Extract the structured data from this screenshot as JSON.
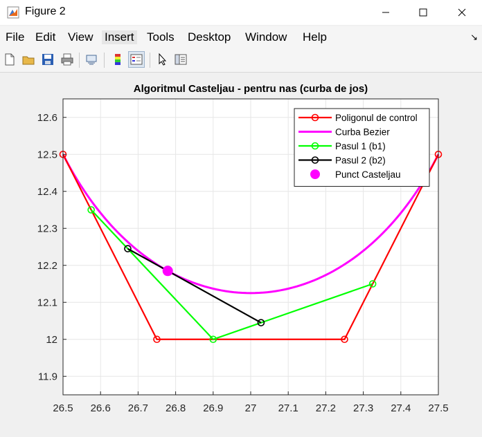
{
  "window": {
    "title": "Figure 2"
  },
  "menu": [
    "File",
    "Edit",
    "View",
    "Insert",
    "Tools",
    "Desktop",
    "Window",
    "Help"
  ],
  "toolbar_icons": [
    "new-figure-icon",
    "open-file-icon",
    "save-icon",
    "print-icon",
    "link-icon",
    "colorbar-icon",
    "legend-icon",
    "pointer-icon",
    "property-inspector-icon"
  ],
  "chart_data": {
    "type": "line",
    "title": "Algoritmul Casteljau - pentru nas (curba de jos)",
    "xlabel": "",
    "ylabel": "",
    "xlim": [
      26.5,
      27.5
    ],
    "ylim": [
      11.85,
      12.65
    ],
    "xticks": [
      26.5,
      26.6,
      26.7,
      26.8,
      26.9,
      27,
      27.1,
      27.2,
      27.3,
      27.4,
      27.5
    ],
    "xtick_labels": [
      "26.5",
      "26.6",
      "26.7",
      "26.8",
      "26.9",
      "27",
      "27.1",
      "27.2",
      "27.3",
      "27.4",
      "27.5"
    ],
    "yticks": [
      11.9,
      12,
      12.1,
      12.2,
      12.3,
      12.4,
      12.5,
      12.6
    ],
    "ytick_labels": [
      "11.9",
      "12",
      "12.1",
      "12.2",
      "12.3",
      "12.4",
      "12.5",
      "12.6"
    ],
    "grid": true,
    "legend_position": "top-right",
    "control_points": [
      [
        26.5,
        12.5
      ],
      [
        26.75,
        12.0
      ],
      [
        27.25,
        12.0
      ],
      [
        27.5,
        12.5
      ]
    ],
    "t": 0.3,
    "series": [
      {
        "name": "Poligonul de control",
        "color": "#ff0000",
        "marker": "circle",
        "points": [
          [
            26.5,
            12.5
          ],
          [
            26.75,
            12.0
          ],
          [
            27.25,
            12.0
          ],
          [
            27.5,
            12.5
          ]
        ]
      },
      {
        "name": "Curba Bezier",
        "color": "#ff00ff",
        "marker": "none",
        "curve": "bezier"
      },
      {
        "name": "Pasul 1 (b1)",
        "color": "#00ff00",
        "marker": "circle",
        "points": [
          [
            26.575,
            12.35
          ],
          [
            26.9,
            12.0
          ],
          [
            27.325,
            12.15
          ]
        ]
      },
      {
        "name": "Pasul 2 (b2)",
        "color": "#000000",
        "marker": "circle",
        "points": [
          [
            26.6725,
            12.245
          ],
          [
            27.0275,
            12.045
          ]
        ]
      },
      {
        "name": "Punct Casteljau",
        "color": "#ff00ff",
        "marker": "filled-circle",
        "points": [
          [
            26.779,
            12.185
          ]
        ]
      }
    ]
  }
}
